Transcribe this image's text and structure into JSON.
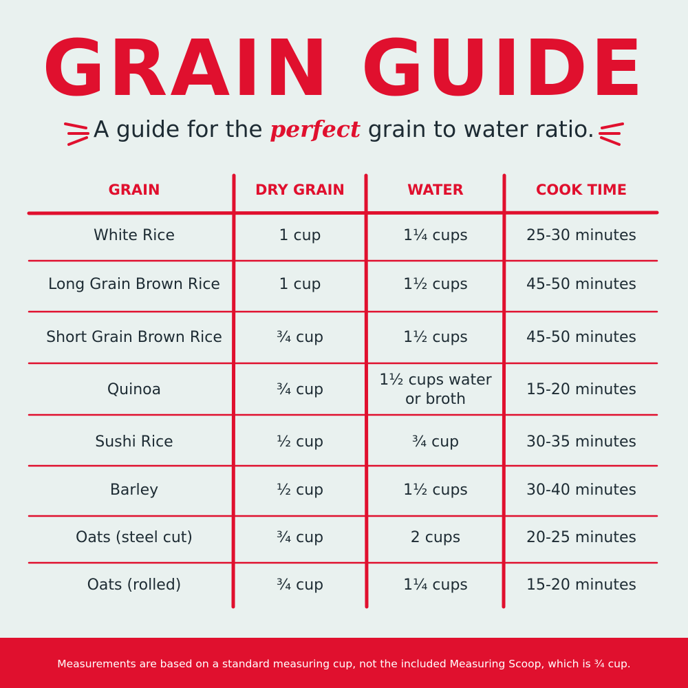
{
  "header": {
    "title": "GRAIN GUIDE",
    "subtitle": {
      "before": "A guide for the",
      "highlight": "perfect",
      "after": "grain to water ratio."
    }
  },
  "table": {
    "columns": [
      "GRAIN",
      "DRY GRAIN",
      "WATER",
      "COOK TIME"
    ],
    "rows": [
      [
        "White Rice",
        "1 cup",
        "1¼ cups",
        "25-30 minutes"
      ],
      [
        "Long Grain Brown Rice",
        "1 cup",
        "1½ cups",
        "45-50 minutes"
      ],
      [
        "Short Grain Brown Rice",
        "¾ cup",
        "1½ cups",
        "45-50 minutes"
      ],
      [
        "Quinoa",
        "¾ cup",
        "1½ cups water or broth",
        "15-20 minutes"
      ],
      [
        "Sushi Rice",
        "½ cup",
        "¾ cup",
        "30-35 minutes"
      ],
      [
        "Barley",
        "½ cup",
        "1½ cups",
        "30-40 minutes"
      ],
      [
        "Oats (steel cut)",
        "¾ cup",
        "2 cups",
        "20-25 minutes"
      ],
      [
        "Oats (rolled)",
        "¾ cup",
        "1¼ cups",
        "15-20 minutes"
      ]
    ]
  },
  "footer": {
    "note": "Measurements are based on a standard measuring cup, not the included Measuring Scoop, which is ¾ cup."
  }
}
